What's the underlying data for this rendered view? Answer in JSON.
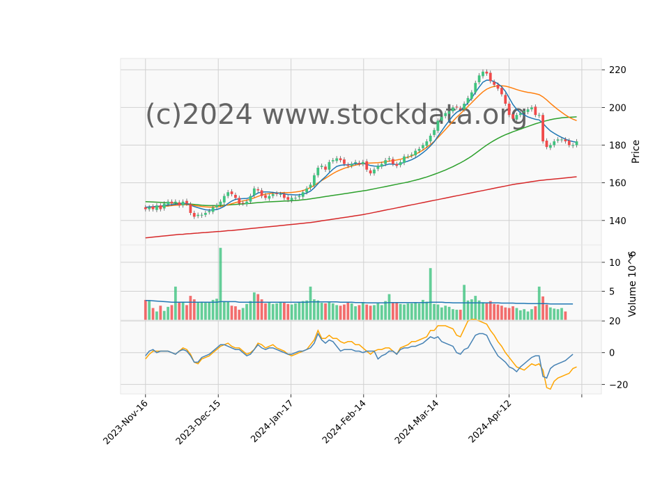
{
  "chart_data": {
    "type": "candlestick",
    "watermark": "(c)2024 www.stockdata.org",
    "x_tick_labels": [
      "2023-Nov-16",
      "2023-Dec-15",
      "2024-Jan-17",
      "2024-Feb-14",
      "2024-Mar-14",
      "2024-Apr-12"
    ],
    "price_panel": {
      "ylabel": "Price",
      "ylim": [
        127,
        226
      ],
      "yticks": [
        140,
        160,
        180,
        200,
        220
      ],
      "grid": true,
      "close": [
        146,
        147,
        146,
        148,
        146,
        149,
        150,
        149,
        150,
        148,
        150,
        149,
        144,
        142,
        143,
        143,
        144,
        145,
        147,
        148,
        150,
        153,
        155,
        154,
        152,
        149,
        149,
        150,
        153,
        157,
        156,
        153,
        152,
        153,
        154,
        154,
        154,
        152,
        151,
        152,
        152,
        153,
        155,
        157,
        159,
        164,
        168,
        169,
        167,
        171,
        172,
        173,
        172,
        170,
        169,
        170,
        171,
        170,
        171,
        167,
        165,
        167,
        169,
        170,
        172,
        173,
        170,
        169,
        171,
        174,
        174,
        175,
        177,
        178,
        180,
        182,
        185,
        188,
        193,
        195,
        197,
        198,
        200,
        200,
        199,
        202,
        205,
        208,
        213,
        217,
        219,
        218,
        214,
        212,
        210,
        207,
        202,
        196,
        194,
        196,
        197,
        198,
        199,
        200,
        196,
        196,
        182,
        179,
        180,
        182,
        183,
        183,
        182,
        180,
        180,
        182
      ],
      "sma_blue": [
        147,
        147.2,
        147.3,
        147.5,
        147.6,
        147.9,
        148.2,
        148.4,
        148.6,
        148.7,
        149,
        148.9,
        148.2,
        147.4,
        146.8,
        146.2,
        145.7,
        145.5,
        145.6,
        145.8,
        146.5,
        147.5,
        149,
        150.3,
        151.2,
        151.5,
        151.6,
        151.7,
        152.2,
        153.4,
        154.6,
        155.1,
        155.2,
        155.1,
        154.9,
        154.6,
        154.4,
        154.1,
        153.8,
        153.7,
        153.6,
        153.6,
        154,
        154.6,
        155.6,
        157.3,
        159.5,
        161.5,
        163.2,
        165.3,
        167.2,
        168.7,
        169.3,
        169.5,
        169.6,
        169.8,
        170.2,
        170.2,
        170.3,
        169.8,
        169.2,
        168.9,
        168.8,
        168.9,
        169.4,
        170,
        169.9,
        169.7,
        170.1,
        170.9,
        171.5,
        172.3,
        173.3,
        174.5,
        176,
        177.6,
        179.6,
        181.8,
        184.7,
        187.5,
        190.4,
        193,
        195.6,
        197.4,
        198.6,
        200.3,
        202.5,
        205,
        208,
        210.8,
        213.4,
        214.5,
        214.4,
        213.7,
        212.6,
        211,
        208.5,
        205,
        201.6,
        199,
        197.2,
        196,
        195,
        194.3,
        193.7,
        193.4,
        191.6,
        189.4,
        187.6,
        186.3,
        185.1,
        184.1,
        183.2,
        182.4,
        181.9,
        181.5
      ],
      "sma_orange": [
        147,
        147,
        147.1,
        147.2,
        147.3,
        147.5,
        147.7,
        147.9,
        148.1,
        148.2,
        148.4,
        148.4,
        148.3,
        148,
        147.7,
        147.4,
        147.2,
        147.1,
        147.1,
        147.2,
        147.4,
        147.8,
        148.3,
        148.9,
        149.5,
        150,
        150.4,
        150.8,
        151.3,
        152,
        152.8,
        153.5,
        154,
        154.3,
        154.5,
        154.6,
        154.7,
        154.8,
        154.8,
        154.9,
        155.1,
        155.4,
        155.9,
        156.6,
        157.5,
        158.6,
        159.9,
        161.2,
        162.4,
        163.7,
        164.9,
        166,
        166.9,
        167.7,
        168.3,
        168.9,
        169.4,
        169.8,
        170.2,
        170.4,
        170.5,
        170.6,
        170.7,
        170.9,
        171.2,
        171.5,
        171.8,
        172.1,
        172.5,
        173,
        173.6,
        174.3,
        175.2,
        176.2,
        177.4,
        178.8,
        180.3,
        182,
        184,
        186.1,
        188.3,
        190.5,
        192.7,
        194.8,
        196.7,
        198.6,
        200.5,
        202.5,
        204.5,
        206.5,
        208.3,
        209.7,
        210.6,
        211.2,
        211.5,
        211.5,
        211.3,
        210.8,
        210.2,
        209.5,
        208.9,
        208.4,
        208,
        207.7,
        207.3,
        206.8,
        205.6,
        204,
        202.2,
        200.5,
        198.9,
        197.4,
        196,
        194.8,
        193.8,
        193
      ],
      "sma_green": [
        150,
        149.9,
        149.8,
        149.7,
        149.6,
        149.5,
        149.4,
        149.3,
        149.2,
        149.1,
        149,
        148.9,
        148.7,
        148.5,
        148.3,
        148.1,
        148,
        147.9,
        147.9,
        147.9,
        148,
        148.1,
        148.2,
        148.4,
        148.5,
        148.7,
        148.8,
        149,
        149.1,
        149.3,
        149.5,
        149.6,
        149.8,
        149.9,
        150,
        150.1,
        150.2,
        150.3,
        150.4,
        150.5,
        150.6,
        150.8,
        151,
        151.2,
        151.5,
        151.8,
        152.1,
        152.4,
        152.7,
        153,
        153.3,
        153.6,
        153.9,
        154.2,
        154.5,
        154.8,
        155.1,
        155.4,
        155.7,
        156,
        156.4,
        156.8,
        157.2,
        157.6,
        158,
        158.4,
        158.8,
        159.2,
        159.6,
        160,
        160.4,
        160.9,
        161.4,
        161.9,
        162.5,
        163.1,
        163.8,
        164.5,
        165.2,
        166,
        166.8,
        167.7,
        168.6,
        169.6,
        170.6,
        171.7,
        172.9,
        174.2,
        175.6,
        177.1,
        178.6,
        180,
        181.3,
        182.5,
        183.6,
        184.6,
        185.5,
        186.3,
        187.1,
        187.8,
        188.5,
        189.2,
        189.9,
        190.6,
        191.3,
        191.9,
        192.5,
        193,
        193.5,
        193.9,
        194.2,
        194.5,
        194.7,
        194.8,
        194.9,
        195
      ],
      "sma_red": [
        130.8,
        131,
        131.2,
        131.4,
        131.6,
        131.8,
        132,
        132.2,
        132.4,
        132.6,
        132.7,
        132.9,
        133,
        133.2,
        133.3,
        133.5,
        133.6,
        133.8,
        133.9,
        134.1,
        134.2,
        134.4,
        134.6,
        134.7,
        134.9,
        135.1,
        135.3,
        135.5,
        135.7,
        135.9,
        136.1,
        136.3,
        136.5,
        136.7,
        136.9,
        137.1,
        137.3,
        137.5,
        137.7,
        137.9,
        138.1,
        138.3,
        138.5,
        138.7,
        138.9,
        139.2,
        139.5,
        139.8,
        140.1,
        140.4,
        140.7,
        141,
        141.3,
        141.6,
        141.9,
        142.2,
        142.5,
        142.8,
        143.1,
        143.5,
        143.9,
        144.3,
        144.7,
        145.1,
        145.5,
        145.9,
        146.3,
        146.7,
        147.1,
        147.5,
        147.9,
        148.3,
        148.7,
        149.1,
        149.5,
        149.9,
        150.3,
        150.7,
        151.1,
        151.5,
        151.9,
        152.3,
        152.7,
        153.1,
        153.5,
        153.9,
        154.3,
        154.7,
        155.1,
        155.5,
        155.9,
        156.3,
        156.7,
        157.1,
        157.5,
        157.9,
        158.3,
        158.7,
        159.1,
        159.4,
        159.7,
        160,
        160.3,
        160.6,
        160.9,
        161.2,
        161.4,
        161.6,
        161.8,
        162,
        162.2,
        162.4,
        162.6,
        162.8,
        163,
        163.2
      ],
      "series_colors": {
        "up": "#3fc37f",
        "down": "#f04a4a",
        "sma_blue": "#1f77b4",
        "sma_orange": "#ff7f0e",
        "sma_green": "#2ca02c",
        "sma_red": "#d62728"
      }
    },
    "volume_panel": {
      "ylabel": "Volume  10^6",
      "yticks": [
        5,
        10
      ],
      "ylim": [
        0,
        13
      ],
      "volume": [
        3.5,
        3.4,
        2.1,
        1.5,
        2.5,
        1.6,
        2.3,
        2.6,
        5.8,
        3.1,
        3.2,
        2.6,
        4.2,
        3.6,
        3,
        3.2,
        3,
        3.1,
        3.5,
        3.7,
        12.5,
        3.3,
        3.2,
        2.5,
        2.4,
        1.8,
        2.1,
        2.8,
        3.3,
        4.8,
        4.5,
        3.6,
        2.9,
        3.1,
        2.8,
        2.9,
        3.2,
        3,
        2.8,
        2.7,
        2.9,
        3.2,
        3.3,
        3.4,
        5.8,
        3.6,
        3.4,
        3,
        2.9,
        3.1,
        2.9,
        2.6,
        2.5,
        2.7,
        3.1,
        2.9,
        2.4,
        2.6,
        3.1,
        2.7,
        2.5,
        2.6,
        2.9,
        2.6,
        3.3,
        4.5,
        3.1,
        3.1,
        2.8,
        2.7,
        2.9,
        2.9,
        3.1,
        2.9,
        3.5,
        3.2,
        9,
        2.8,
        2.7,
        2.2,
        2.5,
        2.3,
        1.9,
        1.8,
        1.8,
        6.1,
        3.4,
        3.6,
        4.2,
        3.4,
        3.1,
        2.9,
        3.3,
        2.8,
        2.7,
        2.5,
        2.2,
        2.1,
        2.4,
        2.1,
        1.7,
        1.9,
        1.5,
        1.9,
        2.4,
        5.8,
        4.1,
        2.7,
        2.2,
        2,
        1.9,
        2.1,
        1.5
      ],
      "avg": [
        3.4,
        3.4,
        3.35,
        3.3,
        3.25,
        3.2,
        3.15,
        3.1,
        3.1,
        3.1,
        3.1,
        3.1,
        3.1,
        3.1,
        3.1,
        3.1,
        3.1,
        3.1,
        3.1,
        3.1,
        3.2,
        3.2,
        3.2,
        3.2,
        3.2,
        3.1,
        3.1,
        3.1,
        3.1,
        3.1,
        3.1,
        3.1,
        3.1,
        3.1,
        3.1,
        3.1,
        3.1,
        3.1,
        3.1,
        3.1,
        3.1,
        3.1,
        3.1,
        3.1,
        3.15,
        3.15,
        3.15,
        3.15,
        3.15,
        3.15,
        3.15,
        3.15,
        3.1,
        3.1,
        3.1,
        3.1,
        3.05,
        3.05,
        3.05,
        3,
        3,
        3,
        3,
        3,
        3,
        3.05,
        3.05,
        3.05,
        3.05,
        3.05,
        3.05,
        3.05,
        3.05,
        3.05,
        3.05,
        3.05,
        3.1,
        3.1,
        3.1,
        3.1,
        3.05,
        3.05,
        3,
        3,
        3,
        3,
        3,
        3,
        3,
        3,
        3,
        3,
        3,
        3,
        3,
        2.95,
        2.95,
        2.95,
        2.95,
        2.9,
        2.9,
        2.9,
        2.85,
        2.85,
        2.85,
        2.85,
        2.85,
        2.85,
        2.8,
        2.8,
        2.8,
        2.8,
        2.8,
        2.8,
        2.8
      ]
    },
    "oscillator_panel": {
      "yticks": [
        -20,
        0,
        20
      ],
      "ylim": [
        -26,
        20.5
      ],
      "line_blue": [
        -2,
        1,
        2,
        0,
        1,
        1,
        1,
        0,
        -1,
        1,
        2,
        1,
        -2,
        -6,
        -6,
        -3,
        -2,
        -1,
        1,
        3,
        5,
        5,
        4,
        3,
        2,
        2,
        0,
        -2,
        -1,
        2,
        5,
        3,
        2,
        3,
        3,
        2,
        1,
        0,
        -1,
        -1,
        0,
        1,
        1,
        2,
        3,
        6,
        12,
        8,
        6,
        8,
        7,
        4,
        1,
        2,
        2,
        2,
        1,
        1,
        0,
        1,
        1,
        1,
        -4,
        -2,
        -1,
        1,
        1,
        -1,
        2,
        3,
        3,
        4,
        4,
        5,
        6,
        8,
        10,
        9,
        10,
        7,
        6,
        5,
        4,
        0,
        -1,
        2,
        3,
        7,
        11,
        12,
        12,
        11,
        6,
        2,
        -2,
        -4,
        -6,
        -9,
        -10,
        -12,
        -9,
        -7,
        -5,
        -3,
        -2,
        -2,
        -15,
        -16,
        -10,
        -8,
        -7,
        -6,
        -5,
        -3,
        -1
      ],
      "line_orange": [
        -4,
        -1,
        1,
        1,
        1,
        1,
        1,
        0,
        -1,
        1,
        3,
        2,
        -1,
        -6,
        -7,
        -4,
        -3,
        -2,
        0,
        2,
        4,
        5,
        6,
        4,
        3,
        3,
        1,
        -1,
        0,
        2,
        6,
        5,
        3,
        4,
        5,
        3,
        2,
        1,
        -1,
        -2,
        -1,
        0,
        1,
        2,
        5,
        8,
        14,
        9,
        9,
        11,
        9,
        9,
        7,
        6,
        7,
        7,
        5,
        5,
        3,
        1,
        -1,
        1,
        2,
        2,
        3,
        3,
        1,
        -1,
        3,
        4,
        5,
        7,
        7,
        8,
        9,
        10,
        14,
        14,
        17,
        17,
        17,
        16,
        15,
        11,
        10,
        15,
        20,
        21,
        21,
        20,
        19,
        18,
        14,
        11,
        7,
        4,
        0,
        -3,
        -6,
        -9,
        -10,
        -11,
        -9,
        -7,
        -8,
        -7,
        -11,
        -22,
        -23,
        -18,
        -16,
        -15,
        -14,
        -13,
        -10,
        -9
      ],
      "colors": {
        "blue": "#4682b4",
        "orange": "#ffa500"
      }
    }
  }
}
